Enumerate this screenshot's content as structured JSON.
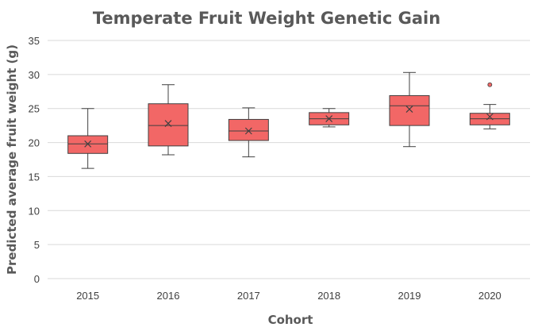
{
  "chart_data": {
    "type": "boxplot",
    "title": "Temperate Fruit Weight Genetic Gain",
    "xlabel": "Cohort",
    "ylabel": "Predicted average fruit weight (g)",
    "ylim": [
      0,
      35
    ],
    "yticks": [
      0,
      5,
      10,
      15,
      20,
      25,
      30,
      35
    ],
    "categories": [
      "2015",
      "2016",
      "2017",
      "2018",
      "2019",
      "2020"
    ],
    "grid": true,
    "color": "#f26766",
    "edge_color": "#404040",
    "boxes": [
      {
        "category": "2015",
        "min": 16.2,
        "q1": 18.4,
        "median": 19.8,
        "q3": 21.0,
        "max": 25.0,
        "mean": 19.8,
        "outliers": []
      },
      {
        "category": "2016",
        "min": 18.2,
        "q1": 19.5,
        "median": 22.5,
        "q3": 25.7,
        "max": 28.5,
        "mean": 22.8,
        "outliers": []
      },
      {
        "category": "2017",
        "min": 17.9,
        "q1": 20.3,
        "median": 21.7,
        "q3": 23.4,
        "max": 25.1,
        "mean": 21.7,
        "outliers": []
      },
      {
        "category": "2018",
        "min": 22.3,
        "q1": 22.6,
        "median": 23.5,
        "q3": 24.4,
        "max": 25.0,
        "mean": 23.5,
        "outliers": []
      },
      {
        "category": "2019",
        "min": 19.4,
        "q1": 22.5,
        "median": 25.4,
        "q3": 26.9,
        "max": 30.3,
        "mean": 24.9,
        "outliers": []
      },
      {
        "category": "2020",
        "min": 22.0,
        "q1": 22.6,
        "median": 23.5,
        "q3": 24.3,
        "max": 25.6,
        "mean": 23.8,
        "outliers": [
          28.5
        ]
      }
    ]
  }
}
